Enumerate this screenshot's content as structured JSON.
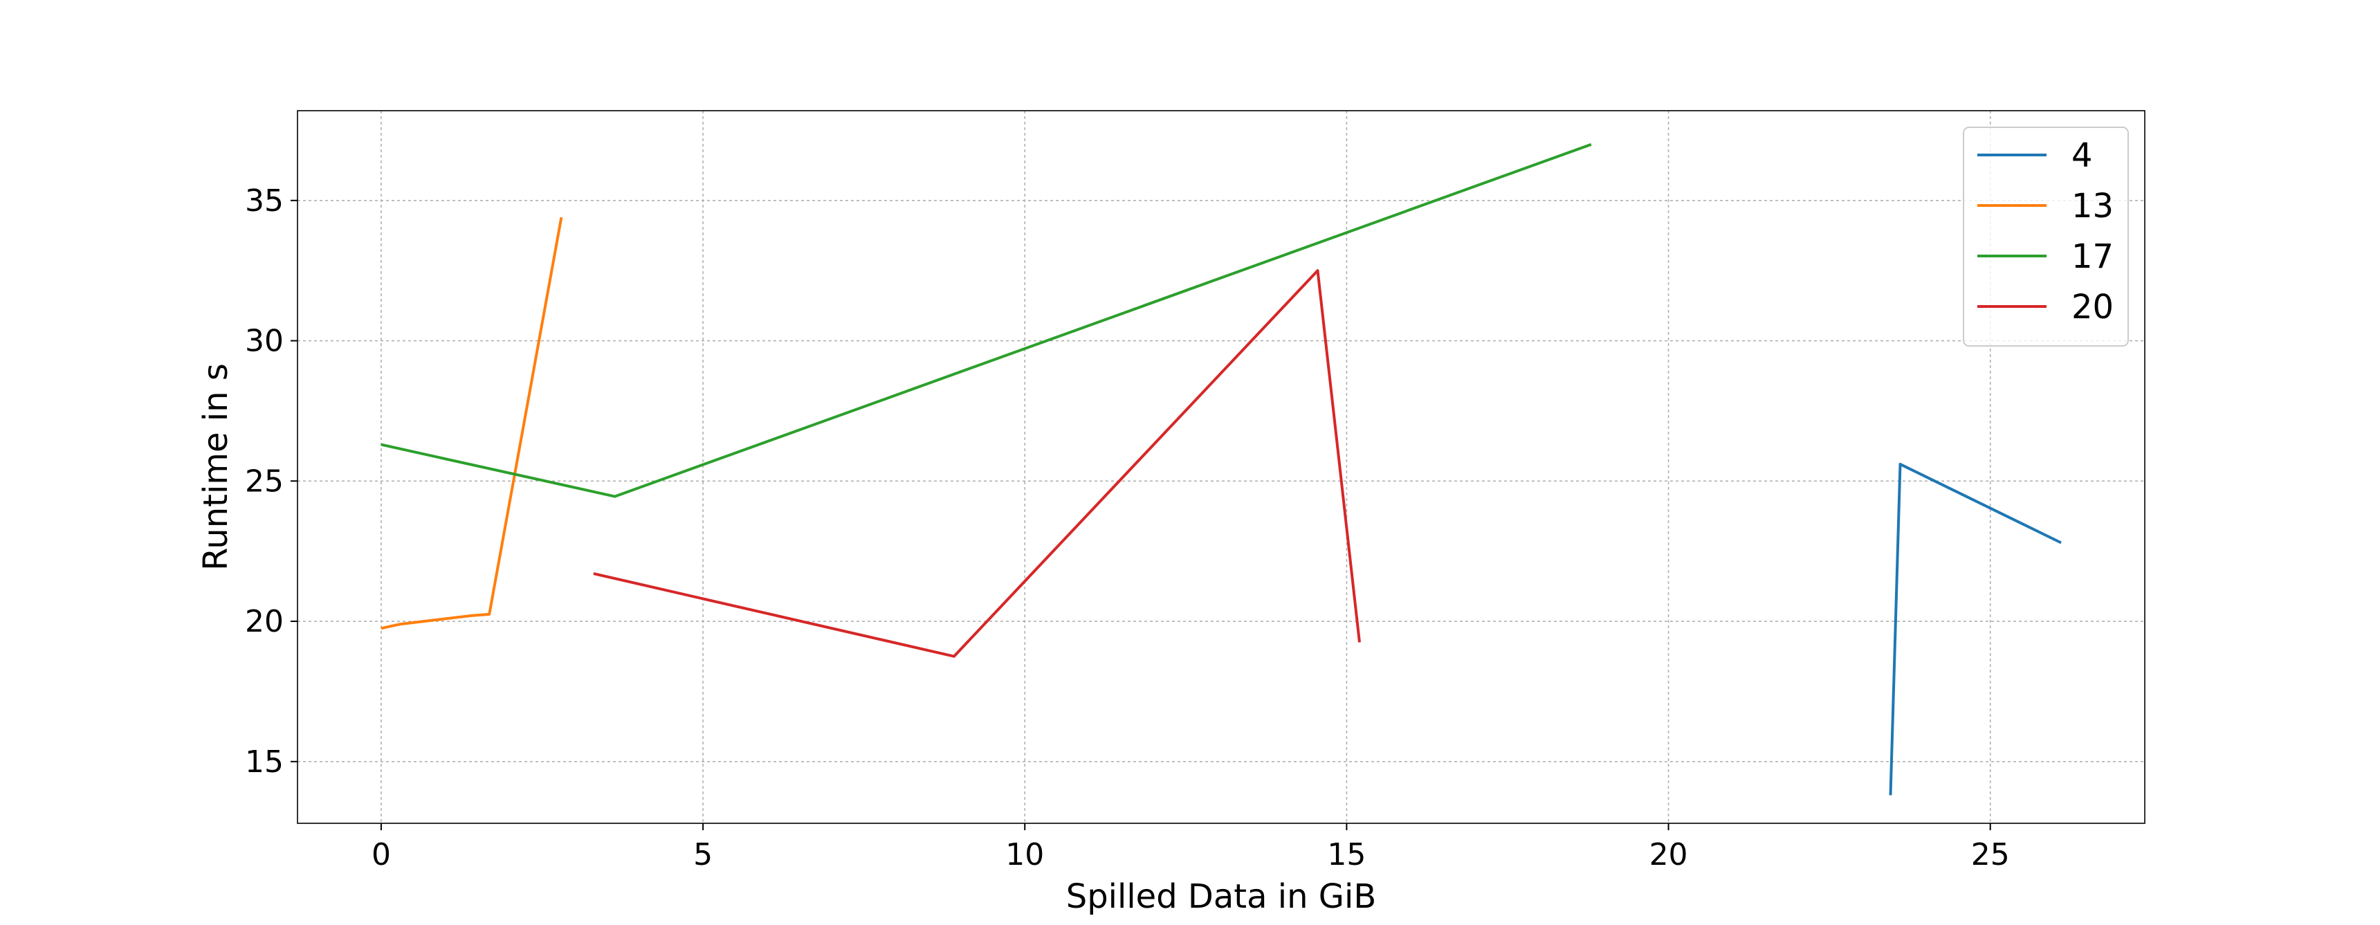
{
  "chart_data": {
    "type": "line",
    "title": "",
    "xlabel": "Spilled Data in GiB",
    "ylabel": "Runtime in s",
    "xlim": [
      -1.3,
      27.4
    ],
    "ylim": [
      12.8,
      38.2
    ],
    "xticks": [
      0,
      5,
      10,
      15,
      20,
      25
    ],
    "yticks": [
      15,
      20,
      25,
      30,
      35
    ],
    "xtick_labels": [
      "0",
      "5",
      "10",
      "15",
      "20",
      "25"
    ],
    "ytick_labels": [
      "15",
      "20",
      "25",
      "30",
      "35"
    ],
    "grid": true,
    "legend_position": "top-right",
    "series": [
      {
        "name": "4",
        "color": "#1f77b4",
        "x": [
          23.45,
          23.6,
          26.1
        ],
        "y": [
          13.8,
          25.6,
          22.8
        ]
      },
      {
        "name": "13",
        "color": "#ff7f0e",
        "x": [
          0.0,
          0.3,
          1.4,
          1.68,
          2.8
        ],
        "y": [
          19.75,
          19.9,
          20.2,
          20.25,
          34.4
        ]
      },
      {
        "name": "17",
        "color": "#2ca02c",
        "x": [
          0.0,
          3.63,
          18.8
        ],
        "y": [
          26.3,
          24.45,
          37.0
        ]
      },
      {
        "name": "20",
        "color": "#d62728",
        "x": [
          3.3,
          8.9,
          14.55,
          15.2
        ],
        "y": [
          21.7,
          18.75,
          32.5,
          19.25
        ]
      }
    ]
  }
}
